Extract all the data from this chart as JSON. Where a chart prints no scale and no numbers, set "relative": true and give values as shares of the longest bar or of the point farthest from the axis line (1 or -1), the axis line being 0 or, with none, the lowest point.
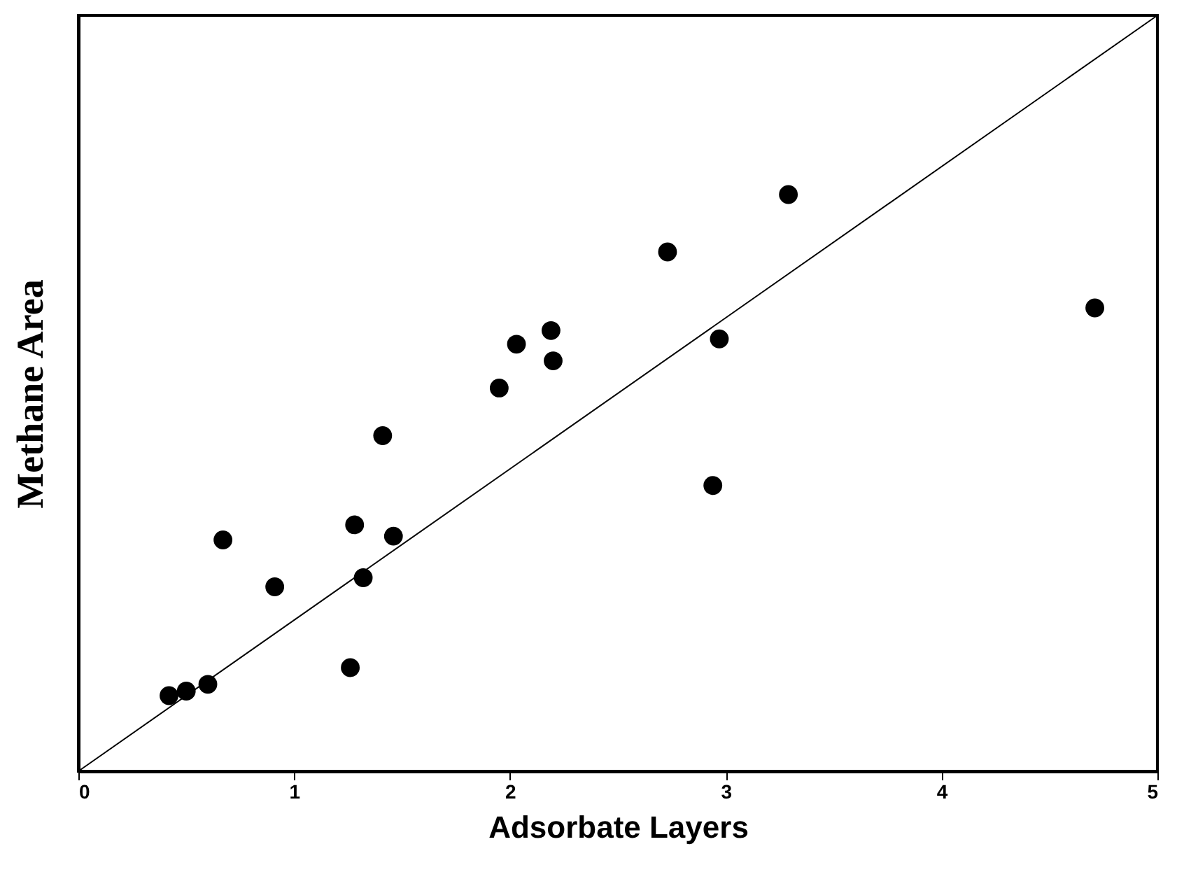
{
  "chart_data": {
    "type": "scatter",
    "xlabel": "Adsorbate Layers",
    "ylabel": "Methane Area",
    "relative": true,
    "xlim": [
      0,
      5
    ],
    "xticks": [
      0,
      1,
      2,
      3,
      4,
      5
    ],
    "tick_labels": "x",
    "series": [
      {
        "marker": "circle",
        "color": "#000000",
        "x": [
          0.42,
          0.5,
          0.6,
          0.67,
          0.91,
          1.26,
          1.28,
          1.32,
          1.41,
          1.46,
          1.95,
          2.03,
          2.19,
          2.2,
          2.73,
          2.94,
          2.97,
          3.29,
          4.71
        ],
        "values": [
          0.1,
          0.106,
          0.115,
          0.306,
          0.244,
          0.137,
          0.326,
          0.256,
          0.444,
          0.311,
          0.507,
          0.565,
          0.583,
          0.543,
          0.687,
          0.378,
          0.572,
          0.763,
          0.613
        ]
      },
      {
        "type": "line",
        "color": "#000000",
        "x": [
          0,
          5
        ],
        "values": [
          0,
          1
        ]
      }
    ]
  }
}
